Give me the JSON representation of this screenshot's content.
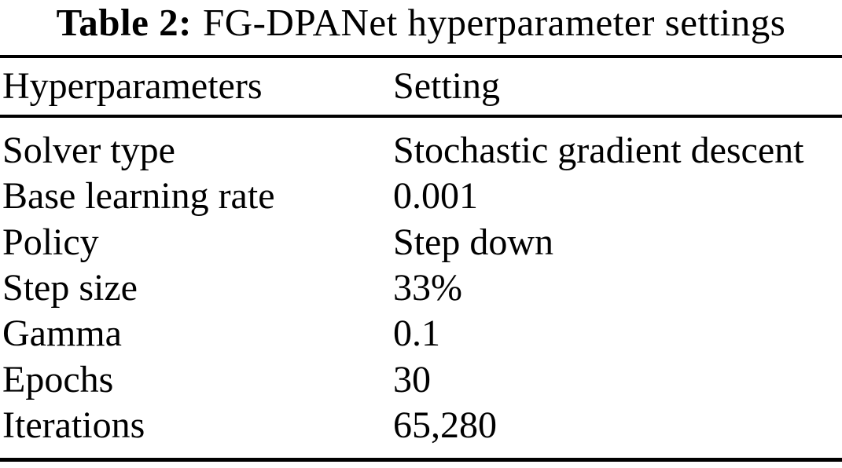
{
  "page": {
    "background_color": "#ffffff",
    "text_color": "#000000"
  },
  "caption": {
    "label": "Table 2:",
    "title": "FG-DPANet hyperparameter settings"
  },
  "table": {
    "headers": {
      "col1": "Hyperparameters",
      "col2": "Setting"
    },
    "rows": [
      {
        "name": "Solver type",
        "value": "Stochastic gradient descent"
      },
      {
        "name": "Base learning rate",
        "value": "0.001"
      },
      {
        "name": "Policy",
        "value": "Step down"
      },
      {
        "name": "Step size",
        "value": "33%"
      },
      {
        "name": "Gamma",
        "value": "0.1"
      },
      {
        "name": "Epochs",
        "value": "30"
      },
      {
        "name": "Iterations",
        "value": "65,280"
      }
    ]
  }
}
